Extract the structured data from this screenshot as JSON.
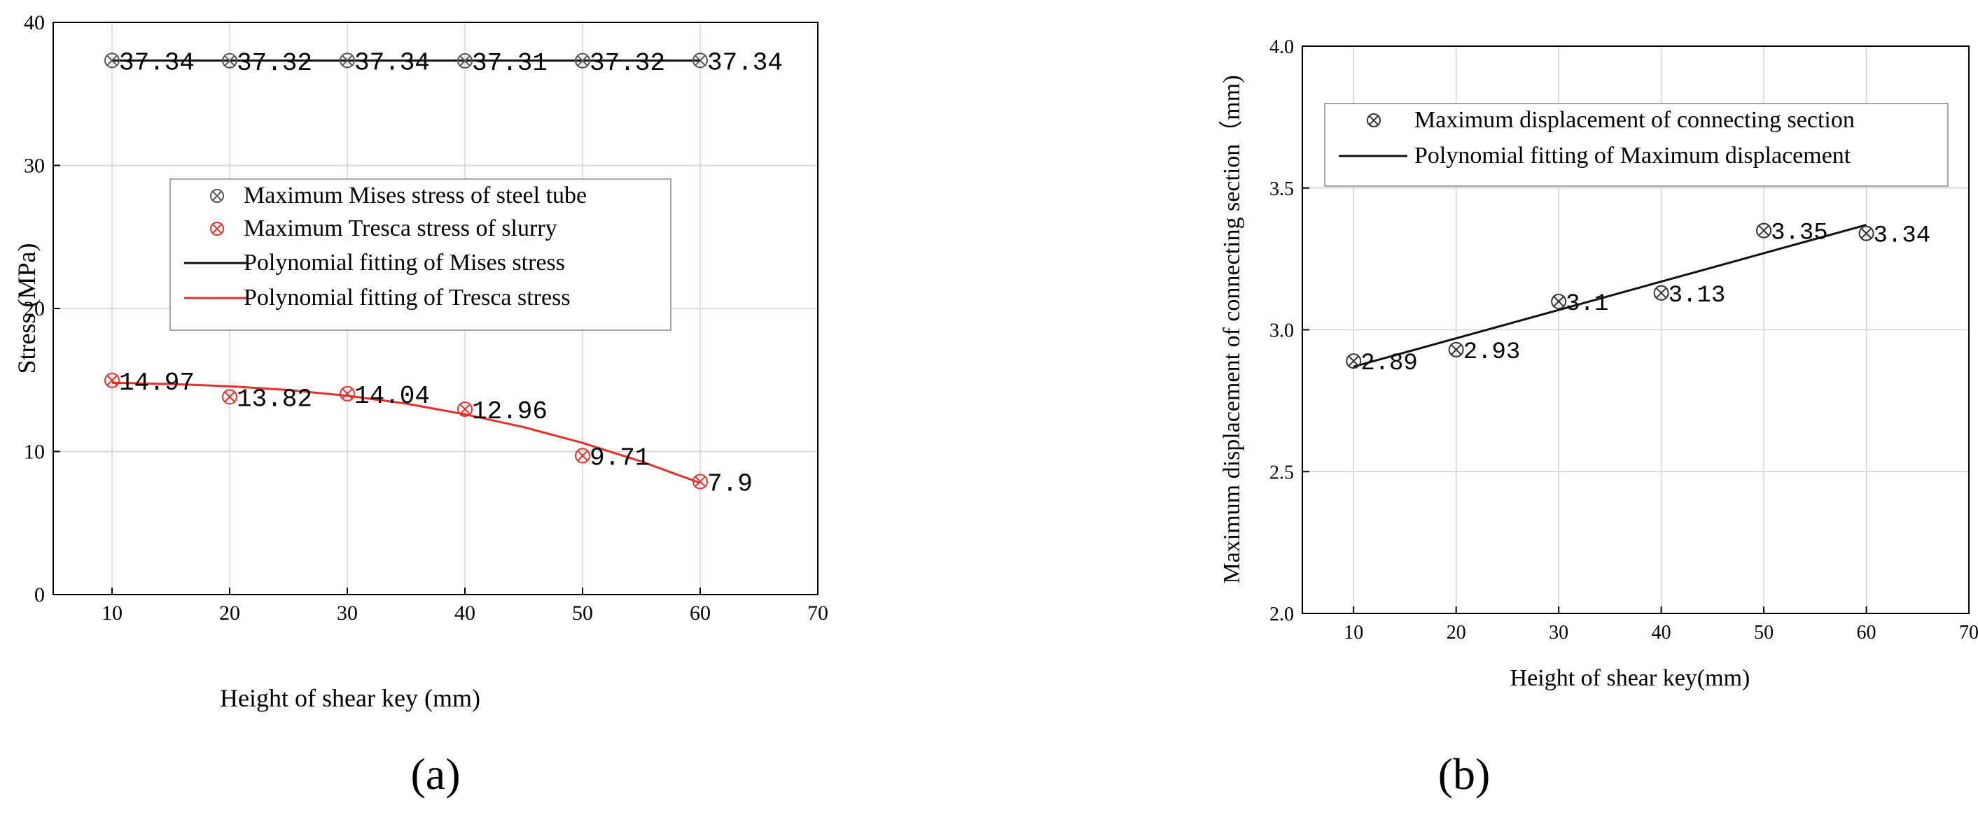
{
  "charts": [
    {
      "panel_label": "(a)",
      "chart_data": {
        "type": "scatter",
        "title": "",
        "xlabel": "Height of shear key (mm)",
        "ylabel": "Stress (MPa)",
        "xlim": [
          5,
          70
        ],
        "ylim": [
          0,
          40
        ],
        "xticks": [
          10,
          20,
          30,
          40,
          50,
          60,
          70
        ],
        "yticks": [
          0,
          10,
          20,
          30,
          40
        ],
        "grid": true,
        "legend_position": "center-right",
        "x": [
          10,
          20,
          30,
          40,
          50,
          60
        ],
        "series": [
          {
            "name": "Maximum Mises stress of steel tube",
            "kind": "marker",
            "color": "#555555",
            "values": [
              37.34,
              37.32,
              37.34,
              37.31,
              37.32,
              37.34
            ],
            "labels": [
              "37.34",
              "37.32",
              "37.34",
              "37.31",
              "37.32",
              "37.34"
            ]
          },
          {
            "name": "Maximum Tresca stress of slurry",
            "kind": "marker",
            "color": "#e8302a",
            "values": [
              14.97,
              13.82,
              14.04,
              12.96,
              9.71,
              7.9
            ],
            "labels": [
              "14.97",
              "13.82",
              "14.04",
              "12.96",
              "9.71",
              "7.9"
            ]
          },
          {
            "name": "Polynomial fitting of Mises stress",
            "kind": "line",
            "color": "#111111",
            "x": [
              10,
              60
            ],
            "values": [
              37.33,
              37.33
            ]
          },
          {
            "name": "Polynomial fitting of Tresca stress",
            "kind": "line",
            "color": "#e8302a",
            "x": [
              10,
              15,
              20,
              25,
              30,
              35,
              40,
              45,
              50,
              55,
              60
            ],
            "values": [
              14.8,
              14.72,
              14.56,
              14.3,
              13.9,
              13.35,
              12.6,
              11.7,
              10.6,
              9.3,
              7.8
            ]
          }
        ]
      }
    },
    {
      "panel_label": "(b)",
      "chart_data": {
        "type": "scatter",
        "title": "",
        "xlabel": "Height of shear key(mm)",
        "ylabel": "Maximum displacement of connecting section（mm)",
        "xlim": [
          5,
          70
        ],
        "ylim": [
          2.0,
          4.0
        ],
        "xticks": [
          10,
          20,
          30,
          40,
          50,
          60,
          70
        ],
        "yticks": [
          "2.0",
          "2.5",
          "3.0",
          "3.5",
          "4.0"
        ],
        "grid": true,
        "legend_position": "top-right",
        "x": [
          10,
          20,
          30,
          40,
          50,
          60
        ],
        "series": [
          {
            "name": "Maximum displacement of connecting section",
            "kind": "marker",
            "color": "#333333",
            "values": [
              2.89,
              2.93,
              3.1,
              3.13,
              3.35,
              3.34
            ],
            "labels": [
              "2.89",
              "2.93",
              "3.1",
              "3.13",
              "3.35",
              "3.34"
            ]
          },
          {
            "name": "Polynomial fitting  of Maximum displacement",
            "kind": "line",
            "color": "#111111",
            "x": [
              10,
              60
            ],
            "values": [
              2.87,
              3.37
            ]
          }
        ]
      }
    }
  ]
}
